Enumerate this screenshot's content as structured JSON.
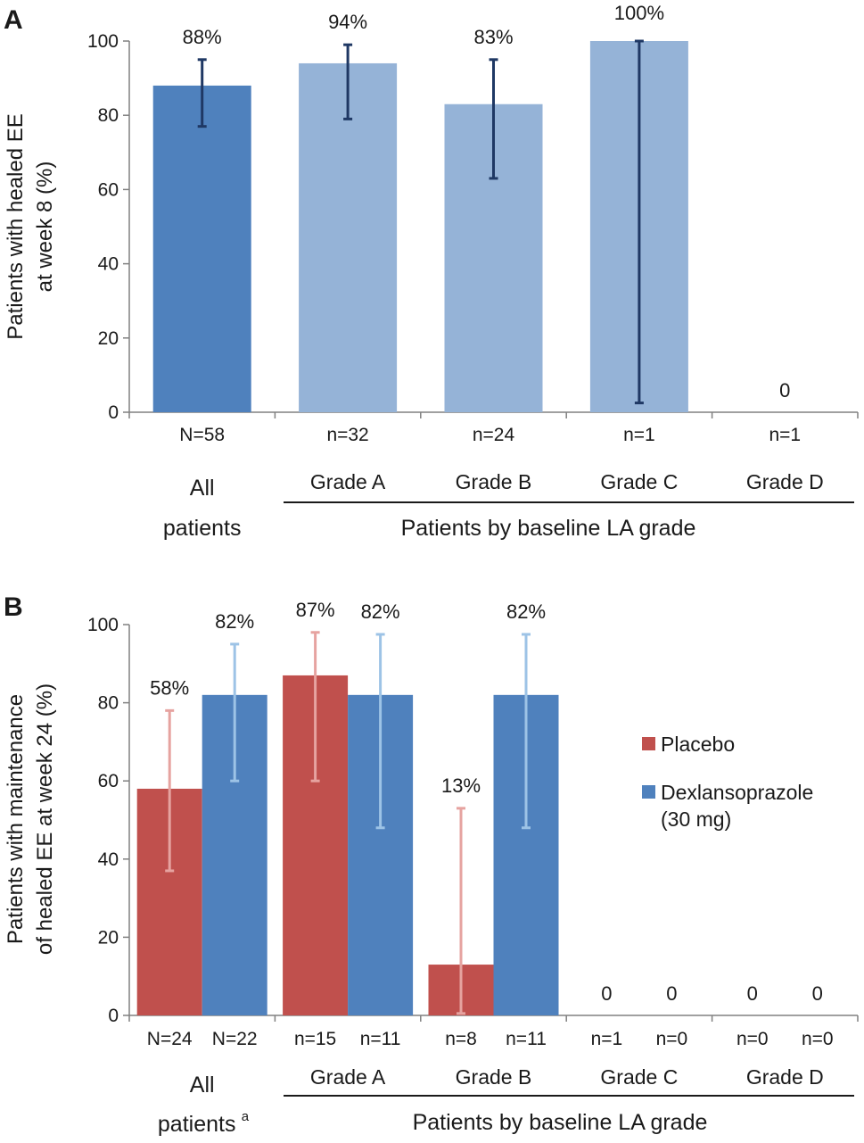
{
  "chart_data": [
    {
      "panel": "A",
      "type": "bar",
      "ylabel_lines": [
        "Patients with healed EE",
        "at week 8 (%)"
      ],
      "ylim": [
        0,
        100
      ],
      "yticks": [
        0,
        20,
        40,
        60,
        80,
        100
      ],
      "categories": [
        "All patients",
        "Grade A",
        "Grade B",
        "Grade C",
        "Grade D"
      ],
      "n_labels": [
        "N=58",
        "n=32",
        "n=24",
        "n=1",
        "n=1"
      ],
      "values": [
        88,
        94,
        83,
        100,
        0
      ],
      "value_labels": [
        "88%",
        "94%",
        "83%",
        "100%",
        "0"
      ],
      "error_low": [
        77,
        79,
        63,
        2.5,
        null
      ],
      "error_high": [
        95,
        99,
        95,
        100,
        null
      ],
      "bar_colors": [
        "#4f81bd",
        "#95b3d7",
        "#95b3d7",
        "#95b3d7",
        "#95b3d7"
      ],
      "error_color": "#1f3864",
      "group_label_left_lines": [
        "All",
        "patients"
      ],
      "grade_labels": [
        "Grade A",
        "Grade B",
        "Grade C",
        "Grade D"
      ],
      "group_label": "Patients by baseline LA grade"
    },
    {
      "panel": "B",
      "type": "bar",
      "ylabel_lines": [
        "Patients with maintenance",
        "of healed EE at week 24 (%)"
      ],
      "ylim": [
        0,
        100
      ],
      "yticks": [
        0,
        20,
        40,
        60,
        80,
        100
      ],
      "categories": [
        "All patients",
        "Grade A",
        "Grade B",
        "Grade C",
        "Grade D"
      ],
      "series": [
        {
          "name": "Placebo",
          "color": "#c0504d",
          "error_color": "#e6a3a0",
          "values": [
            58,
            87,
            13,
            0,
            0
          ],
          "value_labels": [
            "58%",
            "87%",
            "13%",
            "0",
            "0"
          ],
          "n_labels": [
            "N=24",
            "n=15",
            "n=8",
            "n=1",
            "n=0"
          ],
          "error_low": [
            37,
            60,
            0.5,
            null,
            null
          ],
          "error_high": [
            78,
            98,
            53,
            null,
            null
          ]
        },
        {
          "name": "Dexlansoprazole (30 mg)",
          "legend_lines": [
            "Dexlansoprazole",
            "(30 mg)"
          ],
          "color": "#4f81bd",
          "error_color": "#9dc3e6",
          "values": [
            82,
            82,
            82,
            0,
            0
          ],
          "value_labels": [
            "82%",
            "82%",
            "82%",
            "0",
            "0"
          ],
          "n_labels": [
            "N=22",
            "n=11",
            "n=11",
            "n=0",
            "n=0"
          ],
          "error_low": [
            60,
            48,
            48,
            null,
            null
          ],
          "error_high": [
            95,
            97.5,
            97.5,
            null,
            null
          ]
        }
      ],
      "group_label_left": "All",
      "group_label_left2": "patients",
      "group_label_left2_sup": "a",
      "grade_labels": [
        "Grade A",
        "Grade B",
        "Grade C",
        "Grade D"
      ],
      "group_label": "Patients by baseline LA grade",
      "legend_position": "right"
    }
  ]
}
